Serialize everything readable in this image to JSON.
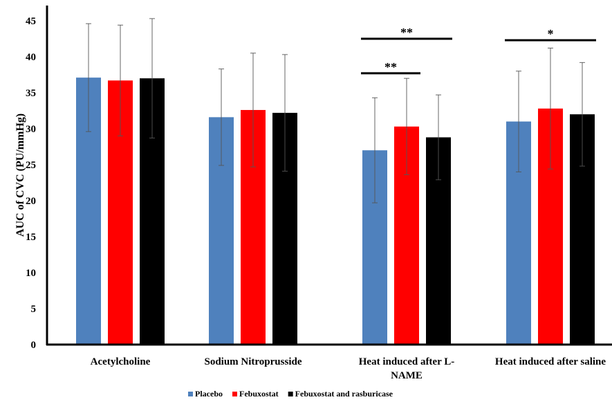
{
  "chart_data": {
    "type": "bar",
    "title": "",
    "xlabel": "",
    "ylabel": "AUC of CVC (PU/mmHg)",
    "ylim": [
      0,
      45
    ],
    "yticks": [
      0,
      5,
      10,
      15,
      20,
      25,
      30,
      35,
      40,
      45
    ],
    "grid": false,
    "legend_position": "bottom",
    "categories": [
      [
        "Acetylcholine"
      ],
      [
        "Sodium Nitroprusside"
      ],
      [
        "Heat induced after L-",
        "NAME"
      ],
      [
        "Heat induced after saline"
      ]
    ],
    "series": [
      {
        "name": "Placebo",
        "color": "#4f81bd",
        "values": [
          37.1,
          31.6,
          27.0,
          31.0
        ],
        "errors": [
          7.5,
          6.7,
          7.3,
          7.0
        ]
      },
      {
        "name": "Febuxostat",
        "color": "#ff0000",
        "values": [
          36.7,
          32.6,
          30.3,
          32.8
        ],
        "errors": [
          7.7,
          7.9,
          6.7,
          8.4
        ]
      },
      {
        "name": "Febuxostat and rasburicase",
        "color": "#000000",
        "values": [
          37.0,
          32.2,
          28.8,
          32.0
        ],
        "errors": [
          8.3,
          8.1,
          5.9,
          7.2
        ]
      }
    ],
    "annotations": [
      {
        "label": "**",
        "category": 2,
        "from_series": 0,
        "to_series": 2,
        "y": 42.5
      },
      {
        "label": "**",
        "category": 2,
        "from_series": 0,
        "to_series": 1,
        "y": 37.7
      },
      {
        "label": "*",
        "category": 3,
        "from_series": 0,
        "to_series": 2,
        "y": 42.3
      }
    ]
  }
}
